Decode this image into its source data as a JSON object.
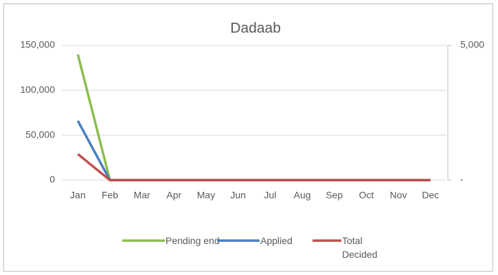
{
  "chart_data": {
    "type": "line",
    "title": "Dadaab",
    "categories": [
      "Jan",
      "Feb",
      "Mar",
      "Apr",
      "May",
      "Jun",
      "Jul",
      "Aug",
      "Sep",
      "Oct",
      "Nov",
      "Dec"
    ],
    "series": [
      {
        "name": "Pending end",
        "color": "#8cbd4f",
        "values": [
          140000,
          0,
          0,
          0,
          0,
          0,
          0,
          0,
          0,
          0,
          0,
          0
        ]
      },
      {
        "name": "Applied",
        "color": "#4a7fc1",
        "values": [
          66000,
          0,
          0,
          0,
          0,
          0,
          0,
          0,
          0,
          0,
          0,
          0
        ]
      },
      {
        "name": "Total Decided",
        "color": "#c0504d",
        "values": [
          29000,
          0,
          0,
          0,
          0,
          0,
          0,
          0,
          0,
          0,
          0,
          0
        ]
      }
    ],
    "ylim": [
      0,
      150000
    ],
    "yticks": [
      0,
      {
        "value": 50000,
        "label": "50,000"
      },
      {
        "value": 100000,
        "label": "100,000"
      },
      {
        "value": 150000,
        "label": "150,000"
      }
    ],
    "y2lim": [
      0,
      5000
    ],
    "y2ticks": [
      {
        "value": 0,
        "label": "-"
      },
      {
        "value": 5000,
        "label": "5,000"
      }
    ],
    "grid": true,
    "legend": "bottom"
  }
}
